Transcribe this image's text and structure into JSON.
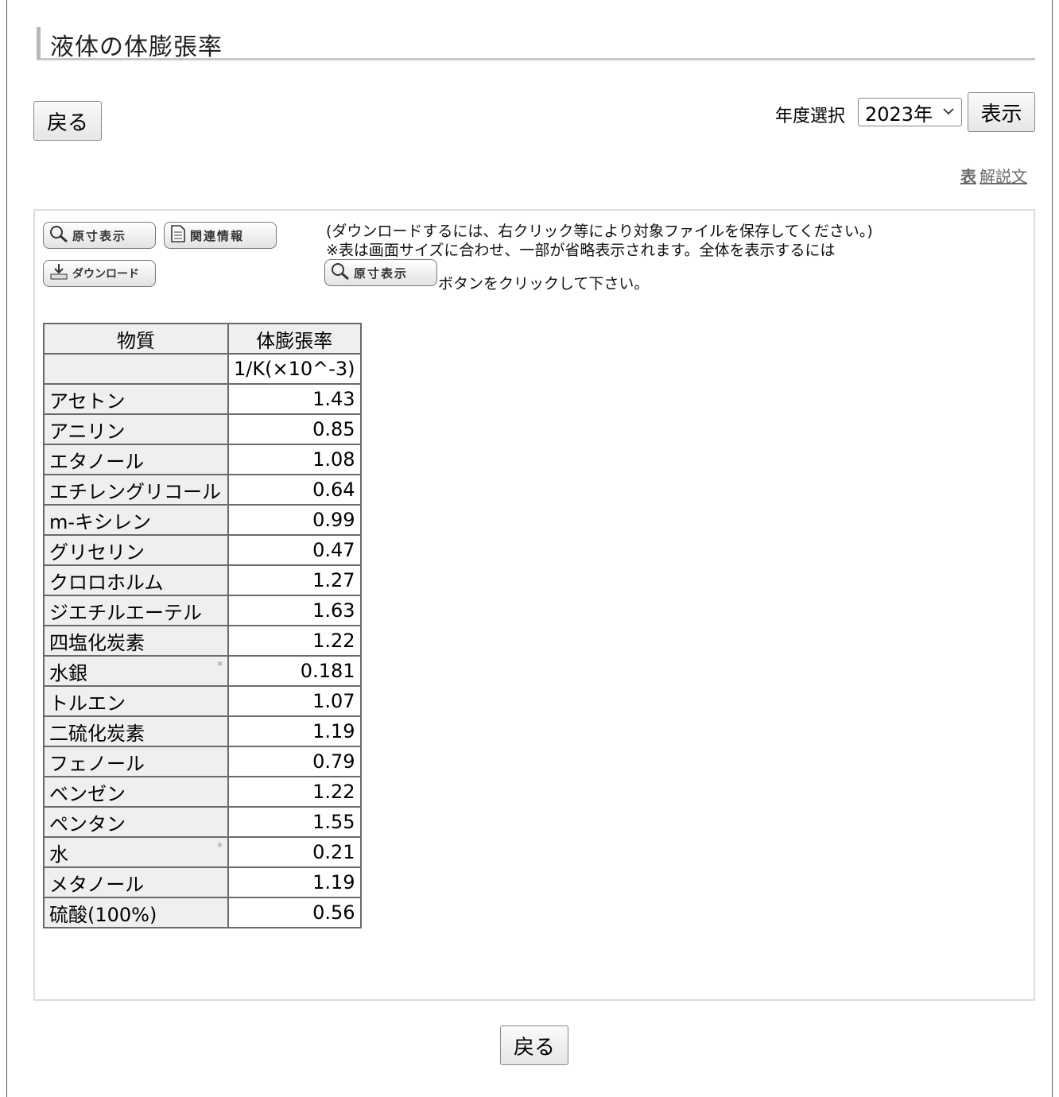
{
  "page_title": "液体の体膨張率",
  "back_label": "戻る",
  "year": {
    "label": "年度選択",
    "selected": "2023年",
    "show_label": "表示"
  },
  "explanation_link": {
    "icon": "表",
    "label": "解説文"
  },
  "toolbar": {
    "original_size": "原寸表示",
    "related_info": "関連情報",
    "download": "ダウンロード"
  },
  "notes": {
    "line1": "(ダウンロードするには、右クリック等により対象ファイルを保存してください。)",
    "line2": "※表は画面サイズに合わせ、一部が省略表示されます。全体を表示するには",
    "line3": "ボタンをクリックして下さい。"
  },
  "table": {
    "headers": [
      "物質",
      "体膨張率"
    ],
    "unit_row": [
      "",
      "1/K(×10^-3)"
    ],
    "rows": [
      {
        "name": "アセトン",
        "value": "1.43",
        "mark": ""
      },
      {
        "name": "アニリン",
        "value": "0.85",
        "mark": ""
      },
      {
        "name": "エタノール",
        "value": "1.08",
        "mark": ""
      },
      {
        "name": "エチレングリコール",
        "value": "0.64",
        "mark": ""
      },
      {
        "name": "m-キシレン",
        "value": "0.99",
        "mark": ""
      },
      {
        "name": "グリセリン",
        "value": "0.47",
        "mark": ""
      },
      {
        "name": "クロロホルム",
        "value": "1.27",
        "mark": ""
      },
      {
        "name": "ジエチルエーテル",
        "value": "1.63",
        "mark": ""
      },
      {
        "name": "四塩化炭素",
        "value": "1.22",
        "mark": ""
      },
      {
        "name": "水銀",
        "value": "0.181",
        "mark": "*"
      },
      {
        "name": "トルエン",
        "value": "1.07",
        "mark": ""
      },
      {
        "name": "二硫化炭素",
        "value": "1.19",
        "mark": ""
      },
      {
        "name": "フェノール",
        "value": "0.79",
        "mark": ""
      },
      {
        "name": "ベンゼン",
        "value": "1.22",
        "mark": ""
      },
      {
        "name": "ペンタン",
        "value": "1.55",
        "mark": ""
      },
      {
        "name": "水",
        "value": "0.21",
        "mark": "*"
      },
      {
        "name": "メタノール",
        "value": "1.19",
        "mark": ""
      },
      {
        "name": "硫酸(100%)",
        "value": "0.56",
        "mark": ""
      }
    ]
  }
}
